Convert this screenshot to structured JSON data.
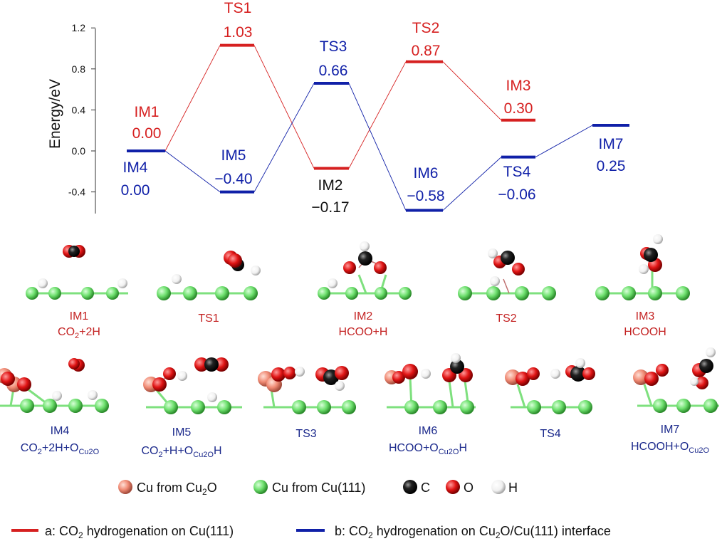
{
  "colors": {
    "red": "#d62020",
    "blue": "#1020a8",
    "black": "#111111",
    "cu2o": "#f08a74",
    "cu111": "#6ee06e",
    "carbon": "#111111",
    "oxygen": "#e01414",
    "hydrogen": "#f2f2f2"
  },
  "chart_data": {
    "type": "line",
    "ylabel": "Energy/eV",
    "ylim": [
      -0.6,
      1.2
    ],
    "yticks": [
      "1.2",
      "0.8",
      "0.4",
      "0.0",
      "-0.4"
    ],
    "yticks_values": [
      1.2,
      0.8,
      0.4,
      0.0,
      -0.4
    ],
    "series": [
      {
        "name": "a: CO2 hydrogenation on Cu(111)",
        "color": "red",
        "states": [
          {
            "label": "IM1",
            "value": 0.0,
            "value_text": "0.00",
            "slot": 0
          },
          {
            "label": "TS1",
            "value": 1.03,
            "value_text": "1.03",
            "slot": 1
          },
          {
            "label": "IM2",
            "value": -0.17,
            "value_text": "−0.17",
            "slot": 2
          },
          {
            "label": "TS2",
            "value": 0.87,
            "value_text": "0.87",
            "slot": 3
          },
          {
            "label": "IM3",
            "value": 0.3,
            "value_text": "0.30",
            "slot": 4
          }
        ]
      },
      {
        "name": "b: CO2 hydrogenation on Cu2O/Cu(111) interface",
        "color": "blue",
        "states": [
          {
            "label": "IM4",
            "value": 0.0,
            "value_text": "0.00",
            "slot": 0
          },
          {
            "label": "IM5",
            "value": -0.4,
            "value_text": "−0.40",
            "slot": 1
          },
          {
            "label": "TS3",
            "value": 0.66,
            "value_text": "0.66",
            "slot": 2
          },
          {
            "label": "IM6",
            "value": -0.58,
            "value_text": "−0.58",
            "slot": 3
          },
          {
            "label": "TS4",
            "value": -0.06,
            "value_text": "−0.06",
            "slot": 4
          },
          {
            "label": "IM7",
            "value": 0.25,
            "value_text": "0.25",
            "slot": 5
          }
        ]
      }
    ]
  },
  "structures": {
    "row1": [
      {
        "name": "IM1",
        "formula": "CO2+2H"
      },
      {
        "name": "TS1",
        "formula": ""
      },
      {
        "name": "IM2",
        "formula": "HCOO+H"
      },
      {
        "name": "TS2",
        "formula": ""
      },
      {
        "name": "IM3",
        "formula": "HCOOH"
      }
    ],
    "row2": [
      {
        "name": "IM4",
        "formula": "CO2+2H+OCu2O"
      },
      {
        "name": "IM5",
        "formula": "CO2+H+OCu2OH"
      },
      {
        "name": "TS3",
        "formula": ""
      },
      {
        "name": "IM6",
        "formula": "HCOO+OCu2OH"
      },
      {
        "name": "TS4",
        "formula": ""
      },
      {
        "name": "IM7",
        "formula": "HCOOH+OCu2O"
      }
    ]
  },
  "atom_legend": [
    {
      "key": "cu2o",
      "label": "Cu from Cu2O"
    },
    {
      "key": "cu111",
      "label": "Cu from Cu(111)"
    },
    {
      "key": "carbon",
      "label": "C"
    },
    {
      "key": "oxygen",
      "label": "O"
    },
    {
      "key": "hydrogen",
      "label": "H"
    }
  ],
  "path_legend": [
    {
      "color": "red",
      "text": "a: CO2 hydrogenation on Cu(111)"
    },
    {
      "color": "blue",
      "text": "b: CO2 hydrogenation on Cu2O/Cu(111) interface"
    }
  ]
}
